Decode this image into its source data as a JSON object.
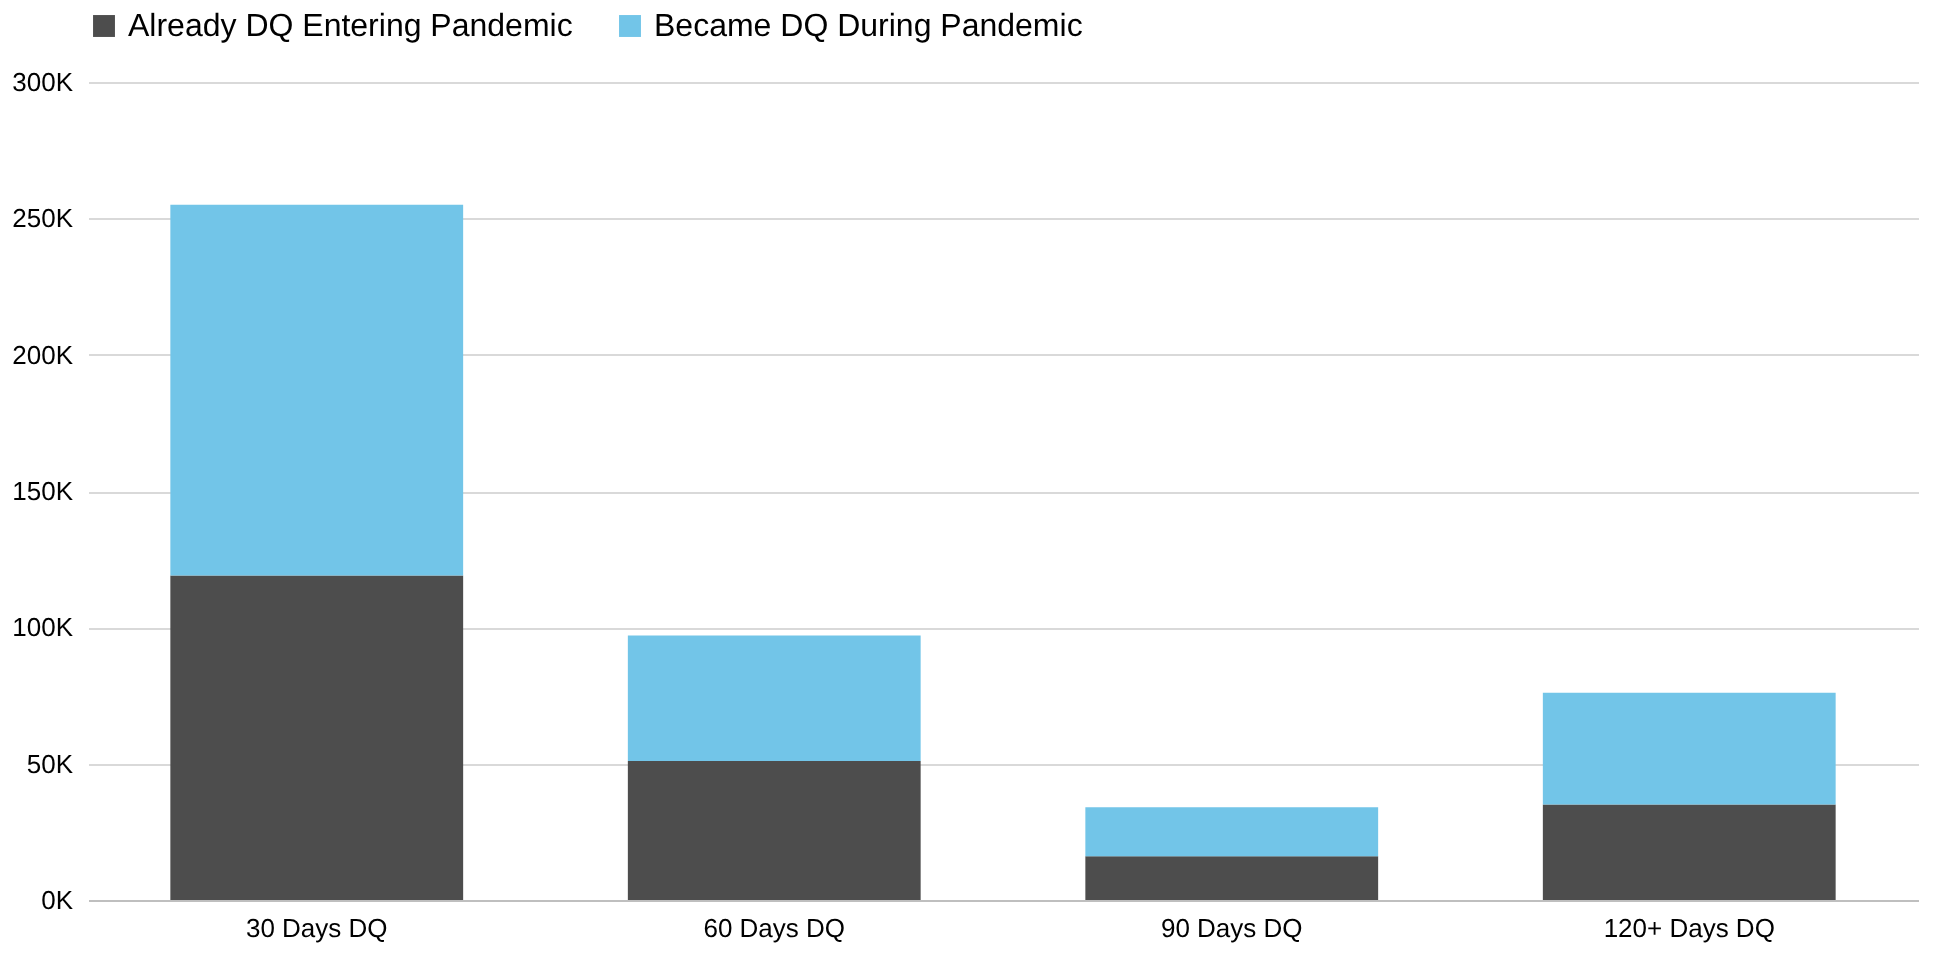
{
  "chart_data": {
    "type": "bar",
    "stacked": true,
    "categories": [
      "30 Days DQ",
      "60 Days DQ",
      "90 Days DQ",
      "120+ Days DQ"
    ],
    "series": [
      {
        "name": "Already DQ Entering Pandemic",
        "color": "#4d4d4d",
        "values": [
          119,
          51,
          16,
          35
        ]
      },
      {
        "name": "Became DQ During Pandemic",
        "color": "#72c5e8",
        "values": [
          136,
          46,
          18,
          41
        ]
      }
    ],
    "ylim": [
      0,
      300
    ],
    "yticks": [
      {
        "value": 0,
        "label": "0K"
      },
      {
        "value": 50,
        "label": "50K"
      },
      {
        "value": 100,
        "label": "100K"
      },
      {
        "value": 150,
        "label": "150K"
      },
      {
        "value": 200,
        "label": "200K"
      },
      {
        "value": 250,
        "label": "250K"
      },
      {
        "value": 300,
        "label": "300K"
      }
    ],
    "grid": "y",
    "legend": "top left"
  }
}
